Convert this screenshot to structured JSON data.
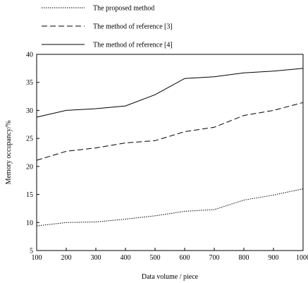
{
  "chart_data": {
    "type": "line",
    "xlabel": "Data volume / piece",
    "ylabel": "Memory occupancy/%",
    "x": [
      100,
      200,
      300,
      400,
      500,
      600,
      700,
      800,
      900,
      1000
    ],
    "xlim": [
      100,
      1000
    ],
    "ylim": [
      5,
      40
    ],
    "x_ticks": [
      "100",
      "200",
      "300",
      "400",
      "500",
      "600",
      "700",
      "800",
      "900",
      "1000"
    ],
    "y_ticks": [
      "5",
      "10",
      "15",
      "20",
      "25",
      "30",
      "35",
      "40"
    ],
    "grid": false,
    "legend_position": "top-left, above plot",
    "series": [
      {
        "name": "The proposed method",
        "style": "dotted",
        "color": "#000000",
        "values": [
          9.4,
          10.0,
          10.1,
          10.6,
          11.2,
          12.0,
          12.3,
          14.0,
          14.9,
          16.0
        ]
      },
      {
        "name": "The method of reference [3]",
        "style": "dashed",
        "color": "#000000",
        "values": [
          21.1,
          22.7,
          23.3,
          24.2,
          24.6,
          26.2,
          27.0,
          29.1,
          30.0,
          31.4
        ]
      },
      {
        "name": "The method of reference [4]",
        "style": "solid",
        "color": "#000000",
        "values": [
          28.8,
          30.0,
          30.3,
          30.8,
          32.8,
          35.7,
          36.0,
          36.7,
          37.0,
          37.5
        ]
      }
    ]
  }
}
